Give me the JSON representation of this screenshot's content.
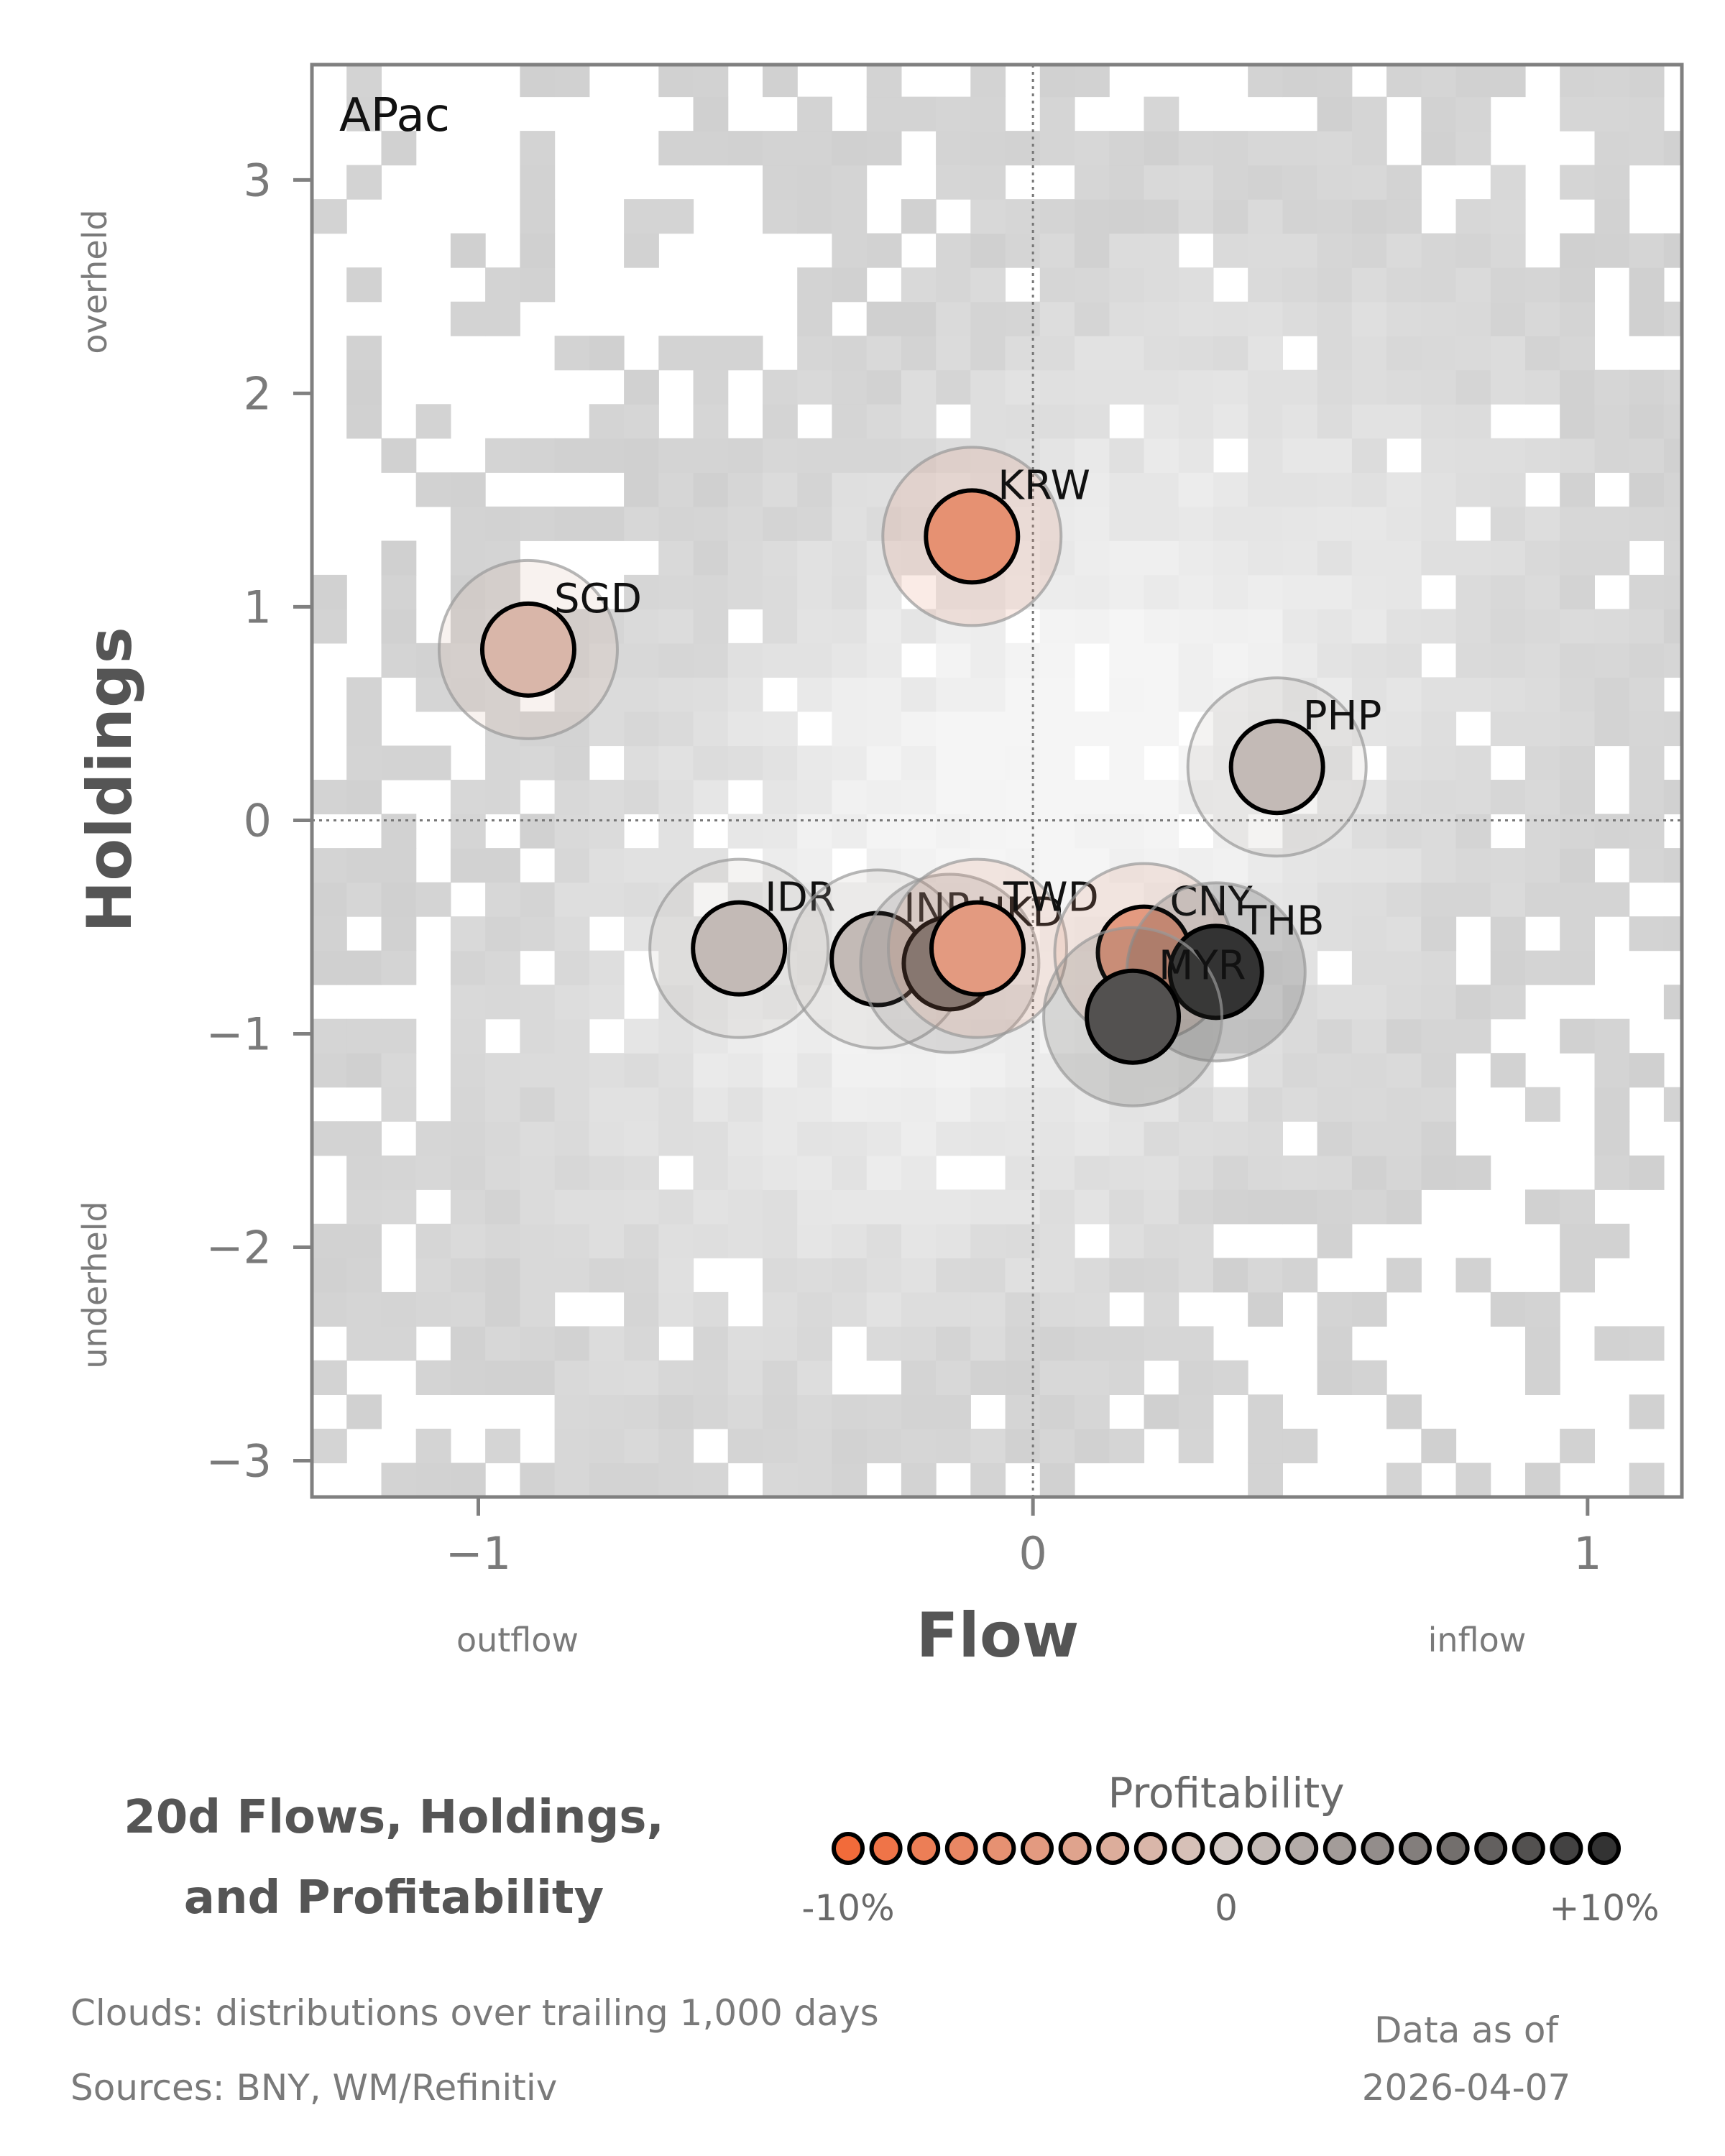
{
  "chart_data": {
    "type": "scatter",
    "panel_label": "APac",
    "xlabel": "Flow",
    "ylabel": "Holdings",
    "x_side_labels": {
      "left": "outflow",
      "right": "inflow"
    },
    "y_side_labels": {
      "top": "overheld",
      "bottom": "underheld"
    },
    "xlim": [
      -1.3,
      1.17
    ],
    "ylim": [
      -3.17,
      3.54
    ],
    "x_ticks": [
      -1,
      0,
      1
    ],
    "x_tick_labels": [
      "−1",
      "0",
      "1"
    ],
    "y_ticks": [
      3,
      2,
      1,
      0,
      -1,
      -2,
      -3
    ],
    "y_tick_labels": [
      "3",
      "2",
      "1",
      "0",
      "−1",
      "−2",
      "−3"
    ],
    "reference_lines": {
      "x": 0,
      "y": 0
    },
    "background": "2d histogram of flow/holdings distributions",
    "points": [
      {
        "label": "KRW",
        "x": -0.11,
        "y": 1.33,
        "profitability": -6
      },
      {
        "label": "SGD",
        "x": -0.91,
        "y": 0.8,
        "profitability": -2
      },
      {
        "label": "PHP",
        "x": 0.44,
        "y": 0.25,
        "profitability": 1
      },
      {
        "label": "IDR",
        "x": -0.53,
        "y": -0.6,
        "profitability": 1
      },
      {
        "label": "INR",
        "x": -0.28,
        "y": -0.65,
        "profitability": 1
      },
      {
        "label": "HKD",
        "x": -0.15,
        "y": -0.67,
        "profitability": 6
      },
      {
        "label": "TWD",
        "x": -0.1,
        "y": -0.6,
        "profitability": -5
      },
      {
        "label": "CNY",
        "x": 0.2,
        "y": -0.62,
        "profitability": -5
      },
      {
        "label": "THB",
        "x": 0.33,
        "y": -0.71,
        "profitability": 10
      },
      {
        "label": "MYR",
        "x": 0.18,
        "y": -0.92,
        "profitability": 8
      }
    ],
    "legend": {
      "title": "Profitability",
      "tick_labels": [
        "-10%",
        "0",
        "+10%"
      ],
      "min": -10,
      "max": 10,
      "colors": [
        "#f26b3a",
        "#d3c9c5",
        "#333333"
      ]
    }
  },
  "footer": {
    "title_line1": "20d Flows, Holdings,",
    "title_line2": "and Profitability",
    "clouds_note": "Clouds:  distributions over trailing 1,000 days",
    "sources_note": "Sources:  BNY, WM/Refinitiv",
    "data_asof_line1": "Data as of",
    "data_asof_line2": "2026-04-07"
  }
}
